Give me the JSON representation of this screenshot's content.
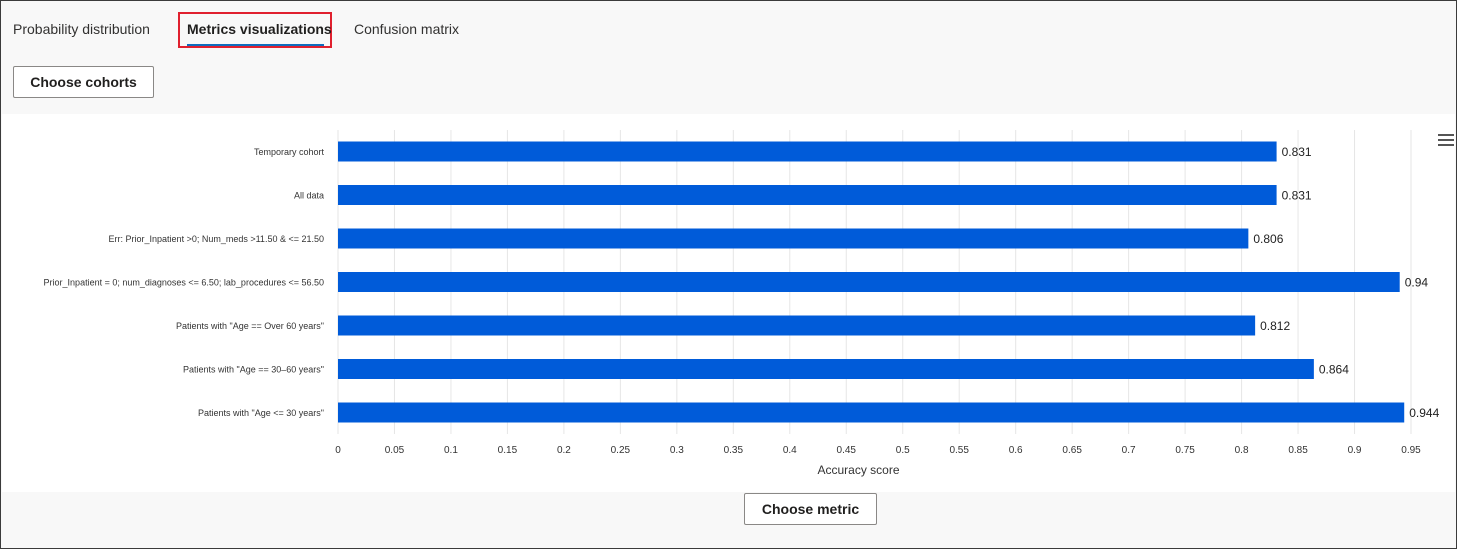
{
  "tabs": {
    "probability": "Probability distribution",
    "metrics": "Metrics visualizations",
    "confusion": "Confusion matrix"
  },
  "buttons": {
    "choose_cohorts": "Choose cohorts",
    "choose_metric": "Choose metric"
  },
  "colors": {
    "bar": "#005bd9",
    "active_highlight": "#e0202e"
  },
  "chart_menu_icon": "hamburger-menu-icon",
  "chart_data": {
    "type": "bar",
    "orientation": "horizontal",
    "categories": [
      "Temporary cohort",
      "All data",
      "Err: Prior_Inpatient >0; Num_meds >11.50 & <= 21.50",
      "Prior_Inpatient = 0; num_diagnoses <= 6.50; lab_procedures <= 56.50",
      "Patients with \"Age == Over 60 years\"",
      "Patients with \"Age == 30–60 years\"",
      "Patients with \"Age <= 30 years\""
    ],
    "values": [
      0.831,
      0.831,
      0.806,
      0.94,
      0.812,
      0.864,
      0.944
    ],
    "value_labels": [
      "0.831",
      "0.831",
      "0.806",
      "0.94",
      "0.812",
      "0.864",
      "0.944"
    ],
    "xticks": [
      "0",
      "0.05",
      "0.1",
      "0.15",
      "0.2",
      "0.25",
      "0.3",
      "0.35",
      "0.4",
      "0.45",
      "0.5",
      "0.55",
      "0.6",
      "0.65",
      "0.7",
      "0.75",
      "0.8",
      "0.85",
      "0.9",
      "0.95"
    ],
    "xlabel": "Accuracy score",
    "xlim": [
      0,
      0.95
    ],
    "grid": true
  }
}
